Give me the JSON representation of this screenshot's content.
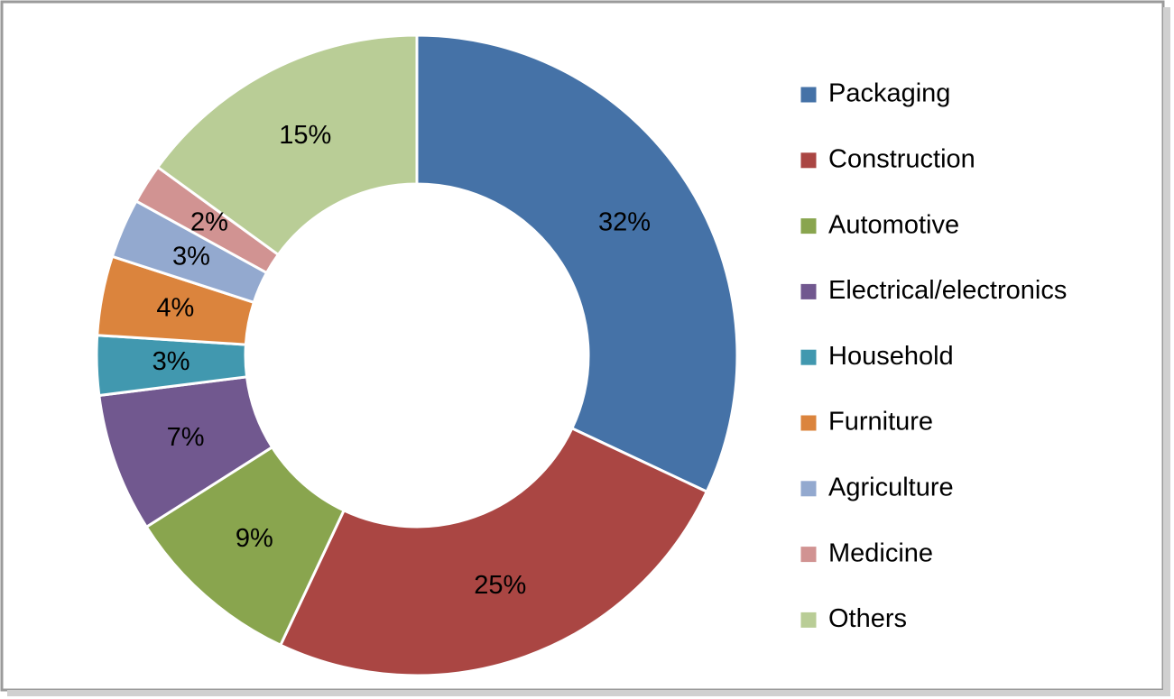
{
  "chart_data": {
    "type": "doughnut",
    "categories": [
      "Packaging",
      "Construction",
      "Automotive",
      "Electrical/electronics",
      "Household",
      "Furniture",
      "Agriculture",
      "Medicine",
      "Others"
    ],
    "values": [
      32,
      25,
      9,
      7,
      3,
      4,
      3,
      2,
      15
    ],
    "value_labels": [
      "32%",
      "25%",
      "9%",
      "7%",
      "3%",
      "4%",
      "3%",
      "2%",
      "15%"
    ],
    "colors": [
      "#4572a7",
      "#aa4643",
      "#89a54e",
      "#71588f",
      "#4198af",
      "#db843d",
      "#93a9cf",
      "#d19392",
      "#b9cd96"
    ],
    "legend": "right"
  }
}
